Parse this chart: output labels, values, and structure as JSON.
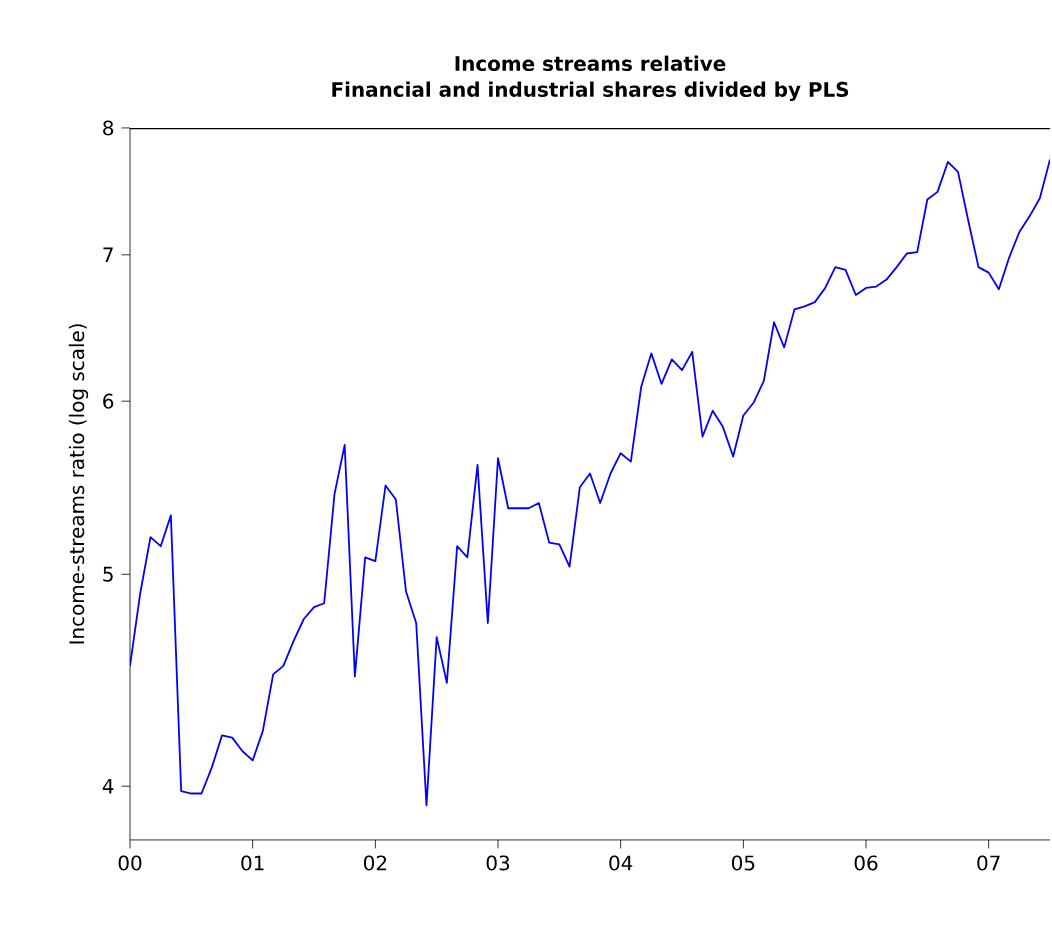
{
  "chart_data": {
    "type": "line",
    "title": "Income streams relative",
    "subtitle": "Financial and industrial shares divided by PLS",
    "ylabel": "Income-streams ratio (log scale)",
    "log": "y",
    "marker": "none",
    "line_style": "solid",
    "xlim": [
      0,
      7.5
    ],
    "ylim": [
      3.78,
      8
    ],
    "xticks": [
      {
        "value": 0,
        "label": "00"
      },
      {
        "value": 1,
        "label": "01"
      },
      {
        "value": 2,
        "label": "02"
      },
      {
        "value": 3,
        "label": "03"
      },
      {
        "value": 4,
        "label": "04"
      },
      {
        "value": 5,
        "label": "05"
      },
      {
        "value": 6,
        "label": "06"
      },
      {
        "value": 7,
        "label": "07"
      }
    ],
    "yticks": [
      4,
      5,
      6,
      7,
      8
    ],
    "x": [
      0,
      0.083,
      0.167,
      0.25,
      0.333,
      0.417,
      0.5,
      0.583,
      0.667,
      0.75,
      0.833,
      0.917,
      1,
      1.083,
      1.167,
      1.25,
      1.333,
      1.417,
      1.5,
      1.583,
      1.667,
      1.75,
      1.833,
      1.917,
      2,
      2.083,
      2.167,
      2.25,
      2.333,
      2.417,
      2.5,
      2.583,
      2.667,
      2.75,
      2.833,
      2.917,
      3,
      3.083,
      3.167,
      3.25,
      3.333,
      3.417,
      3.5,
      3.583,
      3.667,
      3.75,
      3.833,
      3.917,
      4,
      4.083,
      4.167,
      4.25,
      4.333,
      4.417,
      4.5,
      4.583,
      4.667,
      4.75,
      4.833,
      4.917,
      5,
      5.083,
      5.167,
      5.25,
      5.333,
      5.417,
      5.5,
      5.583,
      5.667,
      5.75,
      5.833,
      5.917,
      6,
      6.083,
      6.167,
      6.25,
      6.333,
      6.417,
      6.5,
      6.583,
      6.667,
      6.75,
      6.833,
      6.917,
      7,
      7.083,
      7.167,
      7.25,
      7.333,
      7.417,
      7.5
    ],
    "series": [
      {
        "color": "#0000ff",
        "values": [
          4.54,
          4.9,
          5.2,
          5.15,
          5.32,
          3.98,
          3.97,
          3.97,
          4.08,
          4.22,
          4.21,
          4.15,
          4.11,
          4.24,
          4.5,
          4.54,
          4.66,
          4.77,
          4.83,
          4.85,
          5.44,
          5.73,
          4.49,
          5.09,
          5.07,
          5.49,
          5.41,
          4.91,
          4.75,
          3.92,
          4.68,
          4.46,
          5.15,
          5.09,
          5.61,
          4.75,
          5.65,
          5.36,
          5.36,
          5.36,
          5.39,
          5.17,
          5.16,
          5.04,
          5.48,
          5.56,
          5.39,
          5.56,
          5.68,
          5.63,
          6.09,
          6.31,
          6.11,
          6.27,
          6.2,
          6.32,
          5.78,
          5.94,
          5.84,
          5.66,
          5.91,
          5.99,
          6.13,
          6.52,
          6.35,
          6.61,
          6.63,
          6.66,
          6.76,
          6.91,
          6.89,
          6.71,
          6.76,
          6.77,
          6.82,
          6.91,
          7.01,
          7.02,
          7.42,
          7.48,
          7.72,
          7.64,
          7.26,
          6.91,
          6.87,
          6.75,
          6.98,
          7.17,
          7.29,
          7.43,
          7.74
        ]
      }
    ]
  }
}
